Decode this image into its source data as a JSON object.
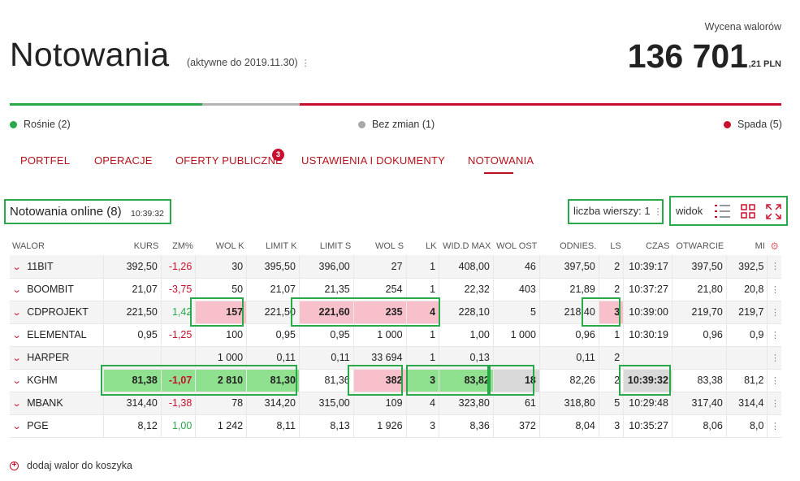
{
  "header": {
    "title": "Notowania",
    "subtitle": "(aktywne do 2019.11.30)",
    "valuation_label": "Wycena walorów",
    "valuation_value": "136 701",
    "valuation_cents": ",21 PLN"
  },
  "summary": {
    "up_label": "Rośnie (2)",
    "flat_label": "Bez zmian (1)",
    "down_label": "Spada (5)",
    "colors": {
      "up": "#2ba84a",
      "flat": "#b4b4b4",
      "down": "#c8102e"
    }
  },
  "nav": {
    "items": [
      "PORTFEL",
      "OPERACJE",
      "OFERTY PUBLICZNE",
      "USTAWIENIA I DOKUMENTY",
      "NOTOWANIA"
    ],
    "badge": "3",
    "active": "NOTOWANIA"
  },
  "panel": {
    "title": "Notowania online (8)",
    "time": "10:39:32",
    "rows_label": "liczba wierszy: 1",
    "view_label": "widok"
  },
  "table": {
    "columns": [
      "WALOR",
      "KURS",
      "ZM%",
      "WOL K",
      "LIMIT K",
      "LIMIT S",
      "WOL S",
      "LK",
      "WID.D MAX",
      "WOL OST",
      "ODNIES.",
      "LS",
      "CZAS",
      "OTWARCIE",
      "MI"
    ],
    "rows": [
      [
        "11BIT",
        "392,50",
        "-1,26",
        "30",
        "395,50",
        "396,00",
        "27",
        "1",
        "408,00",
        "46",
        "397,50",
        "2",
        "10:39:17",
        "397,50",
        "392,5"
      ],
      [
        "BOOMBIT",
        "21,07",
        "-3,75",
        "50",
        "21,07",
        "21,35",
        "254",
        "1",
        "22,32",
        "403",
        "21,89",
        "2",
        "10:37:27",
        "21,80",
        "20,8"
      ],
      [
        "CDPROJEKT",
        "221,50",
        "1,42",
        "157",
        "221,50",
        "221,60",
        "235",
        "4",
        "228,10",
        "5",
        "218,40",
        "3",
        "10:39:00",
        "219,70",
        "219,7"
      ],
      [
        "ELEMENTAL",
        "0,95",
        "-1,25",
        "100",
        "0,95",
        "0,95",
        "1 000",
        "1",
        "1,00",
        "1 000",
        "0,96",
        "1",
        "10:30:19",
        "0,96",
        "0,9"
      ],
      [
        "HARPER",
        "",
        "",
        "1 000",
        "0,11",
        "0,11",
        "33 694",
        "1",
        "0,13",
        "",
        "0,11",
        "2",
        "",
        "",
        ""
      ],
      [
        "KGHM",
        "81,38",
        "-1,07",
        "2 810",
        "81,30",
        "81,36",
        "382",
        "3",
        "83,82",
        "18",
        "82,26",
        "2",
        "10:39:32",
        "83,38",
        "81,2"
      ],
      [
        "MBANK",
        "314,40",
        "-1,38",
        "78",
        "314,20",
        "315,00",
        "109",
        "4",
        "323,80",
        "61",
        "318,80",
        "5",
        "10:29:48",
        "317,40",
        "314,4"
      ],
      [
        "PGE",
        "8,12",
        "1,00",
        "1 242",
        "8,11",
        "8,13",
        "1 926",
        "3",
        "8,36",
        "372",
        "8,04",
        "3",
        "10:35:27",
        "8,06",
        "8,0"
      ]
    ]
  },
  "footer": {
    "add_label": "dodaj walor do koszyka"
  }
}
